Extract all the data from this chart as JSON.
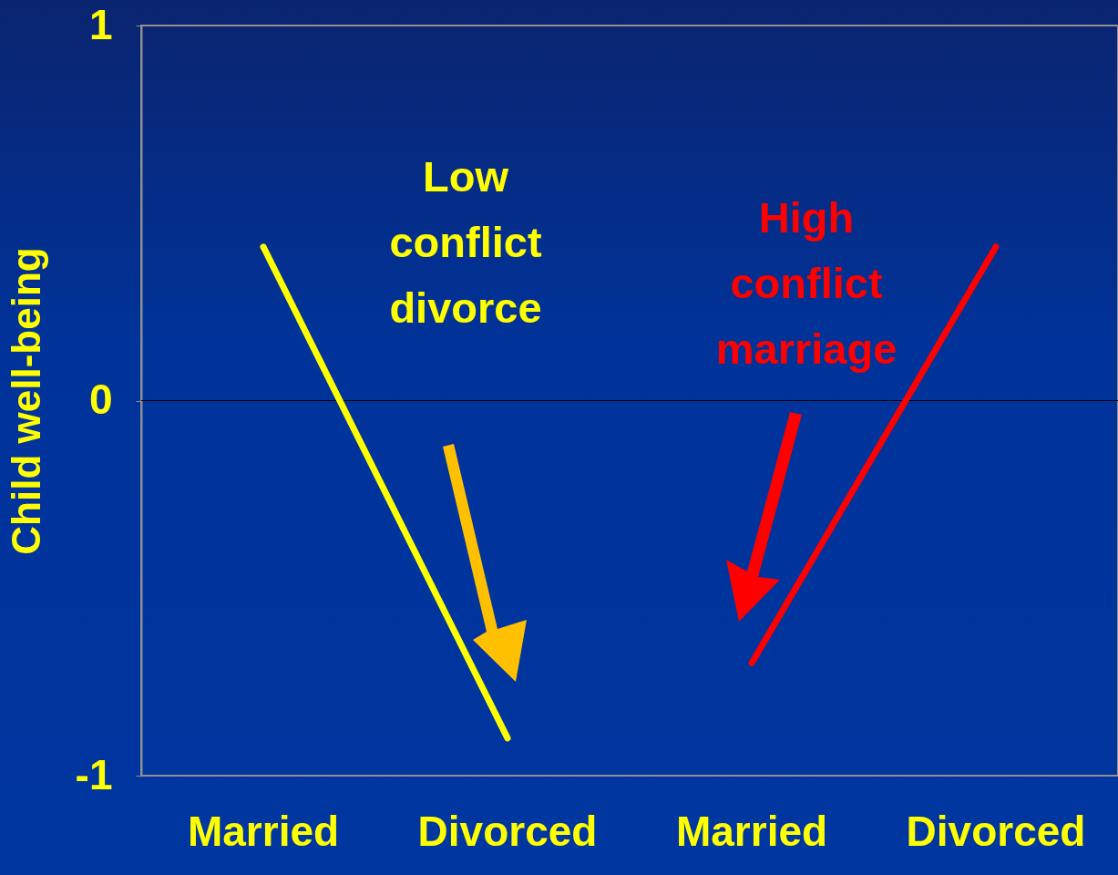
{
  "chart_data": {
    "type": "line",
    "ylabel": "Child well-being",
    "categories": [
      "Married",
      "Divorced",
      "Married",
      "Divorced"
    ],
    "series": [
      {
        "name": "Low conflict divorce",
        "color": "#ffff00",
        "values": [
          0.41,
          -0.9,
          null,
          null
        ]
      },
      {
        "name": "High conflict marriage",
        "color": "#ff0000",
        "values": [
          null,
          null,
          -0.7,
          0.41
        ]
      }
    ],
    "ylim": [
      -1,
      1
    ],
    "yticks": [
      -1,
      0,
      1
    ],
    "grid": false,
    "marker": "none",
    "line_style": "solid",
    "ref_lines": [
      {
        "axis": "y",
        "value": 0,
        "color": "#000000"
      }
    ]
  }
}
